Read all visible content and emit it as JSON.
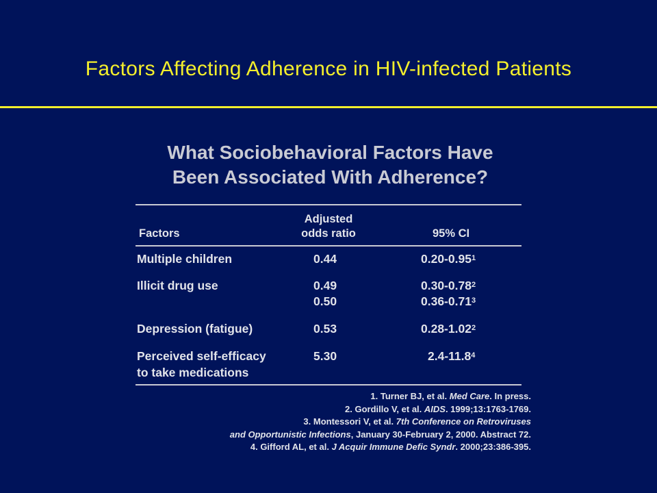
{
  "slide": {
    "title": "Factors Affecting Adherence in HIV-infected Patients"
  },
  "figure": {
    "heading_line1": "What Sociobehavioral Factors Have",
    "heading_line2": "Been Associated With Adherence?",
    "columns": {
      "factors": "Factors",
      "odds_line1": "Adjusted",
      "odds_line2": "odds ratio",
      "ci": "95% CI"
    },
    "rows": [
      {
        "factor": "Multiple children",
        "odds": "0.44",
        "ci": "0.20-0.95",
        "ref": "1"
      },
      {
        "factor": "Illicit drug use",
        "odds": "0.49",
        "ci": "0.30-0.78",
        "ref": "2"
      },
      {
        "factor": "",
        "odds": "0.50",
        "ci": "0.36-0.71",
        "ref": "3"
      },
      {
        "factor": "Depression (fatigue)",
        "odds": "0.53",
        "ci": "0.28-1.02",
        "ref": "2"
      },
      {
        "factor": "Perceived self-efficacy",
        "factor_line2": "to take medications",
        "odds": "5.30",
        "ci": "2.4-11.8",
        "ref": "4"
      }
    ],
    "references": [
      {
        "pre": "1. Turner BJ, et al. ",
        "ital": "Med Care",
        "post": ". In press."
      },
      {
        "pre": "2. Gordillo V, et al. ",
        "ital": "AIDS",
        "post": ". 1999;13:1763-1769."
      },
      {
        "pre": "3. Montessori V, et al. ",
        "ital": "7th Conference on Retroviruses",
        "post": ""
      },
      {
        "pre": "",
        "ital": "and Opportunistic Infections",
        "post": ", January 30-February 2, 2000. Abstract 72."
      },
      {
        "pre": "4. Gifford AL, et al. ",
        "ital": "J Acquir Immune Defic Syndr",
        "post": ". 2000;23:386-395."
      }
    ]
  }
}
